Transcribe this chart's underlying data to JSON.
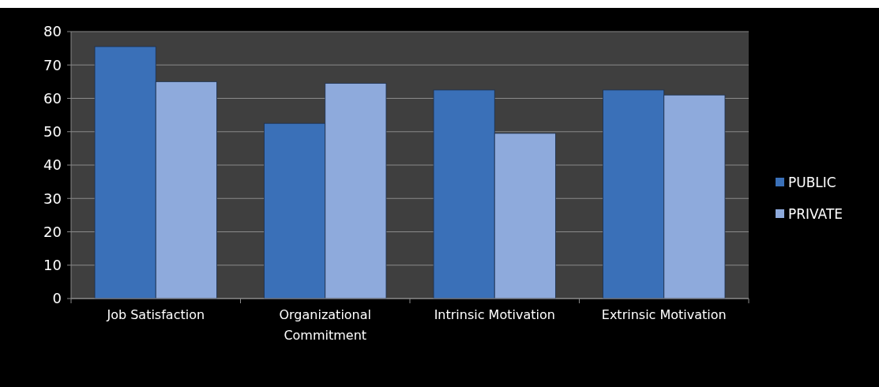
{
  "chart_data": {
    "type": "bar",
    "categories": [
      "Job Satisfaction",
      "Organizational Commitment",
      "Intrinsic Motivation",
      "Extrinsic Motivation"
    ],
    "series": [
      {
        "name": "PUBLIC",
        "color": "#3a70b8",
        "values": [
          75.5,
          52.5,
          62.5,
          62.5
        ]
      },
      {
        "name": "PRIVATE",
        "color": "#8eaadc",
        "values": [
          65,
          64.5,
          49.5,
          61
        ]
      }
    ],
    "ylim": [
      0,
      80
    ],
    "yticks": [
      0,
      10,
      20,
      30,
      40,
      50,
      60,
      70,
      80
    ],
    "grid": "y",
    "legend": "right"
  }
}
